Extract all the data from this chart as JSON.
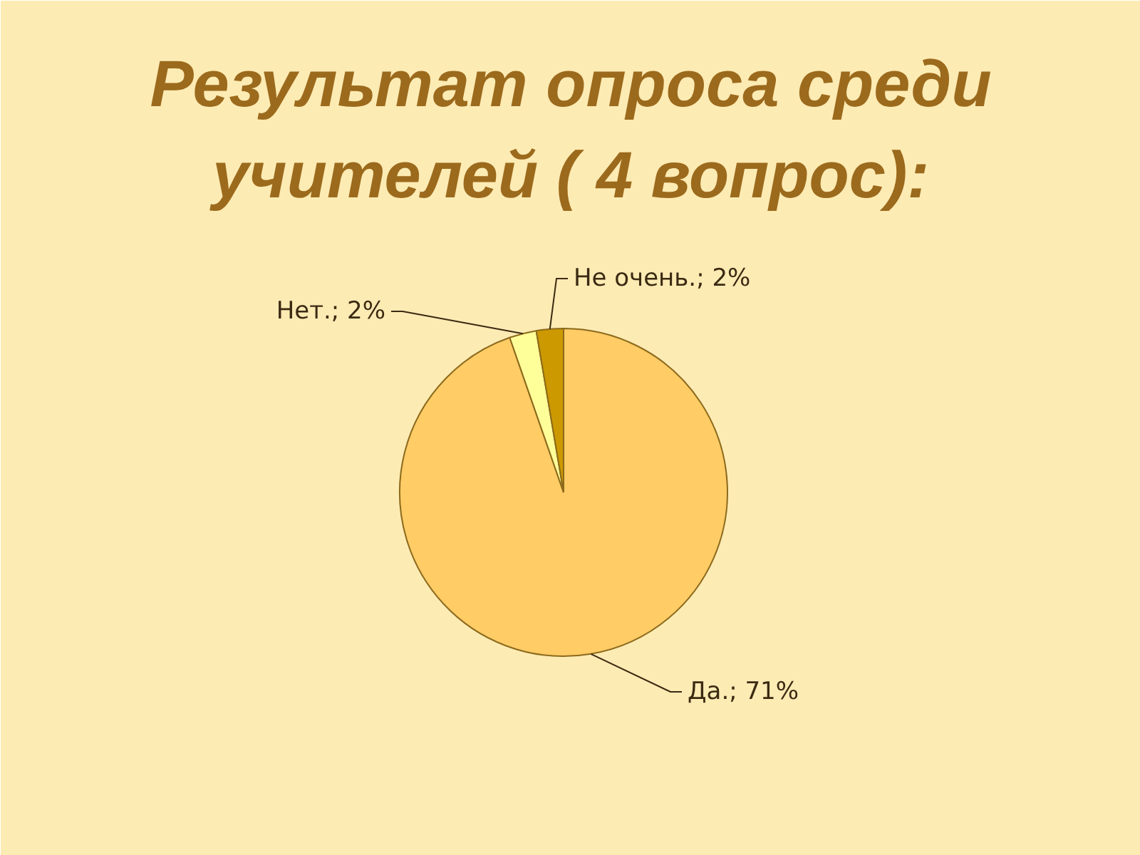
{
  "chart_data": {
    "type": "pie",
    "title": "Результат опроса среди учителей ( 4 вопрос):",
    "categories": [
      "Да.",
      "Нет.",
      "Не очень."
    ],
    "values": [
      71,
      2,
      2
    ],
    "colors": [
      "#ffcc66",
      "#ffff99",
      "#cc9900"
    ],
    "value_labels": [
      "71%",
      "2%",
      "2%"
    ]
  }
}
